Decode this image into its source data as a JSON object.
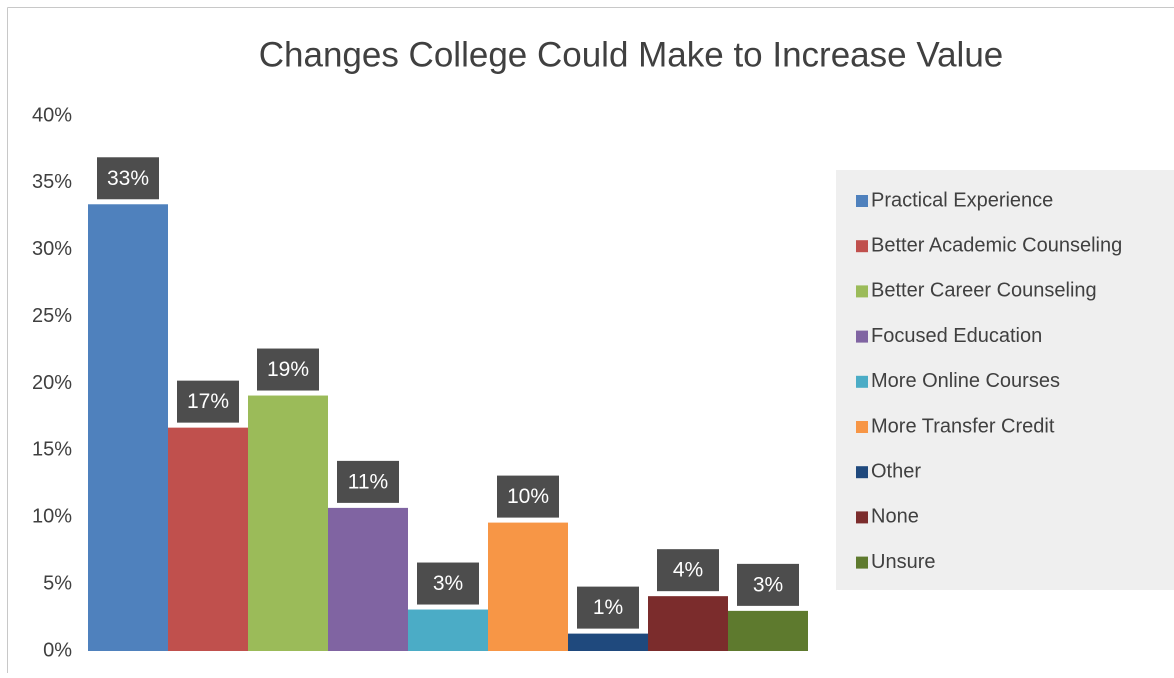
{
  "chart_data": {
    "type": "bar",
    "title": "Changes College Could Make to Increase Value",
    "ylim": [
      0,
      40
    ],
    "yticks": [
      {
        "value": 0,
        "label": "0%"
      },
      {
        "value": 5,
        "label": "5%"
      },
      {
        "value": 10,
        "label": "10%"
      },
      {
        "value": 15,
        "label": "15%"
      },
      {
        "value": 20,
        "label": "20%"
      },
      {
        "value": 25,
        "label": "25%"
      },
      {
        "value": 30,
        "label": "30%"
      },
      {
        "value": 35,
        "label": "35%"
      },
      {
        "value": 40,
        "label": "40%"
      }
    ],
    "grid": false,
    "legend": "right",
    "series": [
      {
        "name": "Practical Experience",
        "color": "#4f81bd",
        "values": [
          33.4
        ],
        "value_labels": [
          "33%"
        ]
      },
      {
        "name": "Better Academic Counseling",
        "color": "#c0504d",
        "values": [
          16.7
        ],
        "value_labels": [
          "17%"
        ]
      },
      {
        "name": "Better Career Counseling",
        "color": "#9bbb59",
        "values": [
          19.1
        ],
        "value_labels": [
          "19%"
        ]
      },
      {
        "name": "Focused Education",
        "color": "#8064a2",
        "values": [
          10.7
        ],
        "value_labels": [
          "11%"
        ]
      },
      {
        "name": "More Online Courses",
        "color": "#4bacc6",
        "values": [
          3.1
        ],
        "value_labels": [
          "3%"
        ]
      },
      {
        "name": "More Transfer Credit",
        "color": "#f79646",
        "values": [
          9.6
        ],
        "value_labels": [
          "10%"
        ]
      },
      {
        "name": "Other",
        "color": "#1f497d",
        "values": [
          1.3
        ],
        "value_labels": [
          "1%"
        ]
      },
      {
        "name": "None",
        "color": "#7b2c2c",
        "values": [
          4.1
        ],
        "value_labels": [
          "4%"
        ]
      },
      {
        "name": "Unsure",
        "color": "#5e7a2e",
        "values": [
          3.0
        ],
        "value_labels": [
          "3%"
        ]
      }
    ]
  }
}
